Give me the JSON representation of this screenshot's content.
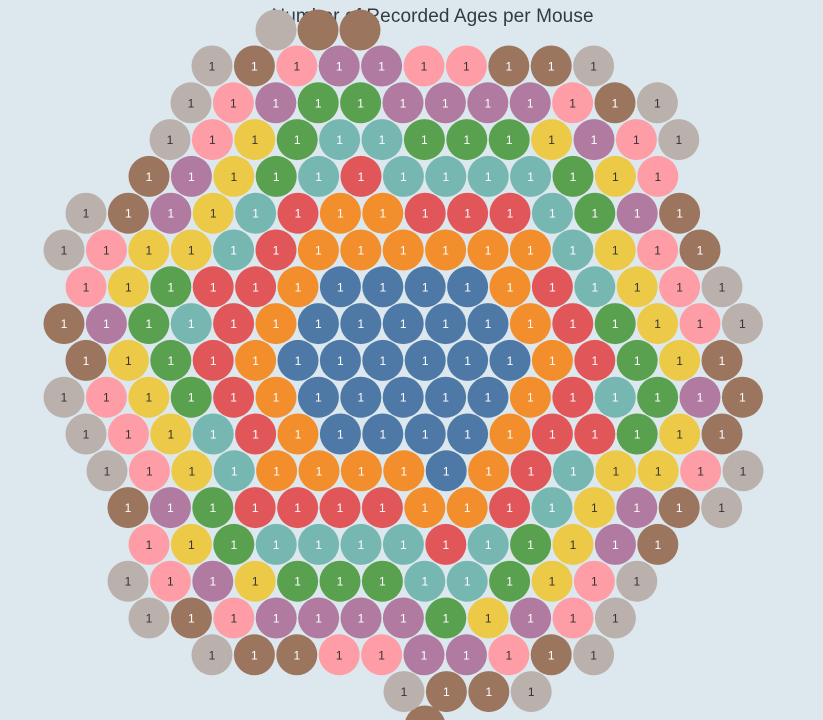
{
  "chart_data": {
    "type": "bubble",
    "title": "Number of Recorded Ages per Mouse",
    "layout": "packed-hexagon",
    "colors": {
      "blue": "#4e79a7",
      "orange": "#f28e2b",
      "red": "#e15759",
      "teal": "#76b7b2",
      "green": "#59a14f",
      "yellow": "#edc948",
      "purple": "#b07aa1",
      "pink": "#ff9da7",
      "brown": "#9c755f",
      "gray": "#bab0ac"
    },
    "rows": [
      {
        "colors": [
          "gray",
          "brown",
          "pink",
          "purple",
          "purple",
          "pink",
          "pink",
          "brown",
          "brown",
          "gray"
        ],
        "values": [
          1,
          1,
          1,
          1,
          1,
          1,
          1,
          1,
          1,
          1
        ]
      },
      {
        "colors": [
          "gray",
          "pink",
          "purple",
          "green",
          "green",
          "purple",
          "purple",
          "purple",
          "purple",
          "pink",
          "brown",
          "gray"
        ],
        "values": [
          1,
          1,
          1,
          1,
          1,
          1,
          1,
          1,
          1,
          1,
          1,
          1
        ]
      },
      {
        "colors": [
          "gray",
          "pink",
          "yellow",
          "green",
          "teal",
          "teal",
          "green",
          "green",
          "green",
          "yellow",
          "purple",
          "pink",
          "gray"
        ],
        "values": [
          1,
          1,
          1,
          1,
          1,
          1,
          1,
          1,
          1,
          1,
          1,
          1,
          1
        ]
      },
      {
        "colors": [
          "brown",
          "purple",
          "yellow",
          "green",
          "teal",
          "red",
          "teal",
          "teal",
          "teal",
          "teal",
          "green",
          "yellow",
          "pink"
        ],
        "values": [
          1,
          1,
          1,
          1,
          1,
          1,
          1,
          1,
          1,
          1,
          1,
          1,
          1
        ]
      },
      {
        "colors": [
          "gray",
          "brown",
          "purple",
          "yellow",
          "teal",
          "red",
          "orange",
          "orange",
          "red",
          "red",
          "red",
          "teal",
          "green",
          "purple",
          "brown"
        ],
        "values": [
          1,
          1,
          1,
          1,
          1,
          1,
          1,
          1,
          1,
          1,
          1,
          1,
          1,
          1,
          1
        ]
      },
      {
        "colors": [
          "gray",
          "pink",
          "yellow",
          "yellow",
          "teal",
          "red",
          "orange",
          "orange",
          "orange",
          "orange",
          "orange",
          "orange",
          "teal",
          "yellow",
          "pink",
          "brown"
        ],
        "values": [
          1,
          1,
          1,
          1,
          1,
          1,
          1,
          1,
          1,
          1,
          1,
          1,
          1,
          1,
          1,
          1
        ]
      },
      {
        "colors": [
          "pink",
          "yellow",
          "green",
          "red",
          "red",
          "orange",
          "blue",
          "blue",
          "blue",
          "blue",
          "orange",
          "red",
          "teal",
          "yellow",
          "pink",
          "gray"
        ],
        "values": [
          1,
          1,
          1,
          1,
          1,
          1,
          1,
          1,
          1,
          1,
          1,
          1,
          1,
          1,
          1,
          1
        ]
      },
      {
        "colors": [
          "brown",
          "purple",
          "green",
          "teal",
          "red",
          "orange",
          "blue",
          "blue",
          "blue",
          "blue",
          "blue",
          "orange",
          "red",
          "green",
          "yellow",
          "pink",
          "gray"
        ],
        "values": [
          1,
          1,
          1,
          1,
          1,
          1,
          1,
          1,
          1,
          1,
          1,
          1,
          1,
          1,
          1,
          1,
          1
        ]
      },
      {
        "colors": [
          "brown",
          "yellow",
          "green",
          "red",
          "orange",
          "blue",
          "blue",
          "blue",
          "blue",
          "blue",
          "blue",
          "orange",
          "red",
          "green",
          "yellow",
          "brown"
        ],
        "values": [
          1,
          1,
          1,
          1,
          1,
          1,
          1,
          1,
          1,
          1,
          1,
          1,
          1,
          1,
          1,
          1
        ]
      },
      {
        "colors": [
          "gray",
          "pink",
          "yellow",
          "green",
          "red",
          "orange",
          "blue",
          "blue",
          "blue",
          "blue",
          "blue",
          "orange",
          "red",
          "teal",
          "green",
          "purple",
          "brown"
        ],
        "values": [
          1,
          1,
          1,
          1,
          1,
          1,
          1,
          1,
          1,
          1,
          1,
          1,
          1,
          1,
          1,
          1,
          1
        ]
      },
      {
        "colors": [
          "gray",
          "pink",
          "yellow",
          "teal",
          "red",
          "orange",
          "blue",
          "blue",
          "blue",
          "blue",
          "orange",
          "red",
          "red",
          "green",
          "yellow",
          "brown"
        ],
        "values": [
          1,
          1,
          1,
          1,
          1,
          1,
          1,
          1,
          1,
          1,
          1,
          1,
          1,
          1,
          1,
          1
        ]
      },
      {
        "colors": [
          "gray",
          "pink",
          "yellow",
          "teal",
          "orange",
          "orange",
          "orange",
          "orange",
          "blue",
          "orange",
          "red",
          "teal",
          "yellow",
          "yellow",
          "pink",
          "gray"
        ],
        "values": [
          1,
          1,
          1,
          1,
          1,
          1,
          1,
          1,
          1,
          1,
          1,
          1,
          1,
          1,
          1,
          1
        ]
      },
      {
        "colors": [
          "brown",
          "purple",
          "green",
          "red",
          "red",
          "red",
          "red",
          "orange",
          "orange",
          "red",
          "teal",
          "yellow",
          "purple",
          "brown",
          "gray"
        ],
        "values": [
          1,
          1,
          1,
          1,
          1,
          1,
          1,
          1,
          1,
          1,
          1,
          1,
          1,
          1,
          1
        ]
      },
      {
        "colors": [
          "pink",
          "yellow",
          "green",
          "teal",
          "teal",
          "teal",
          "teal",
          "red",
          "teal",
          "green",
          "yellow",
          "purple",
          "brown"
        ],
        "values": [
          1,
          1,
          1,
          1,
          1,
          1,
          1,
          1,
          1,
          1,
          1,
          1,
          1
        ]
      },
      {
        "colors": [
          "gray",
          "pink",
          "purple",
          "yellow",
          "green",
          "green",
          "green",
          "teal",
          "teal",
          "green",
          "yellow",
          "pink",
          "gray"
        ],
        "values": [
          1,
          1,
          1,
          1,
          1,
          1,
          1,
          1,
          1,
          1,
          1,
          1,
          1
        ]
      },
      {
        "colors": [
          "gray",
          "brown",
          "pink",
          "purple",
          "purple",
          "purple",
          "purple",
          "green",
          "yellow",
          "purple",
          "pink",
          "gray"
        ],
        "values": [
          1,
          1,
          1,
          1,
          1,
          1,
          1,
          1,
          1,
          1,
          1,
          1
        ]
      },
      {
        "colors": [
          "gray",
          "brown",
          "brown",
          "pink",
          "pink",
          "purple",
          "purple",
          "pink",
          "brown",
          "gray"
        ],
        "values": [
          1,
          1,
          1,
          1,
          1,
          1,
          1,
          1,
          1,
          1
        ]
      },
      {
        "colors": [
          "gray",
          "brown",
          "brown",
          "gray"
        ],
        "values": [
          1,
          1,
          1,
          1
        ]
      }
    ]
  }
}
